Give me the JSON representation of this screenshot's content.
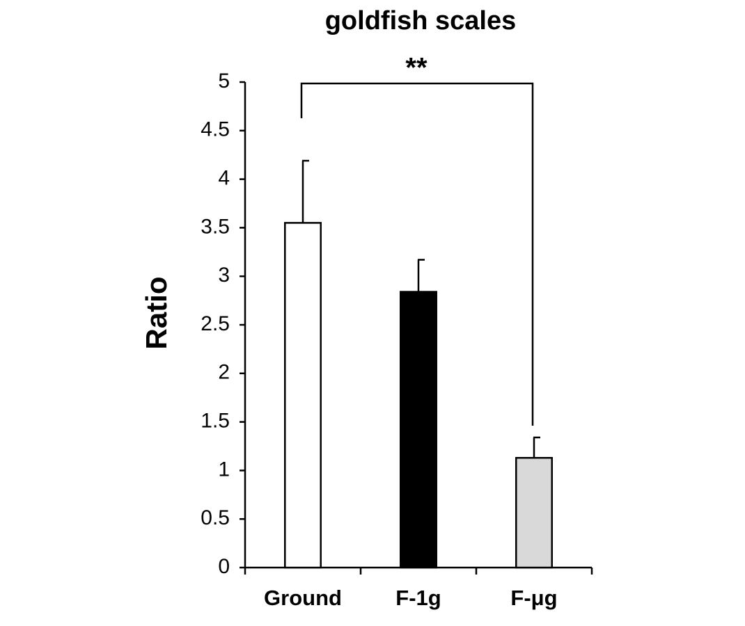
{
  "chart_data": {
    "type": "bar",
    "title": "goldfish scales",
    "y_label": "Ratio",
    "categories": [
      "Ground",
      "F-1g",
      "F-μg"
    ],
    "values": [
      3.55,
      2.84,
      1.13
    ],
    "errors": [
      0.64,
      0.33,
      0.21
    ],
    "colors": [
      "#ffffff",
      "#000000",
      "#d9d9d9"
    ],
    "ylim": [
      0,
      5
    ],
    "yticks": [
      0,
      0.5,
      1,
      1.5,
      2,
      2.5,
      3,
      3.5,
      4,
      4.5,
      5
    ],
    "annotation": "**"
  }
}
